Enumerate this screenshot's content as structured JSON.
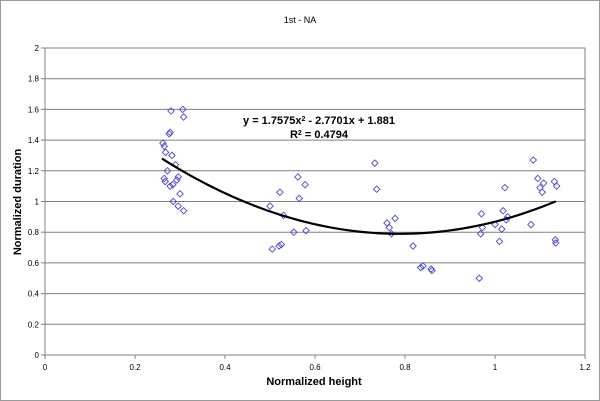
{
  "chart_data": {
    "type": "scatter",
    "title": "1st - NA",
    "xlabel": "Normalized height",
    "ylabel": "Normalized duration",
    "xlim": [
      0,
      1.2
    ],
    "ylim": [
      0,
      2
    ],
    "x_ticks": [
      "0",
      "0.2",
      "0.4",
      "0.6",
      "0.8",
      "1",
      "1.2"
    ],
    "y_ticks": [
      "0",
      "0.2",
      "0.4",
      "0.6",
      "0.8",
      "1",
      "1.2",
      "1.4",
      "1.6",
      "1.8",
      "2"
    ],
    "grid": "horizontal",
    "marker": "diamond",
    "marker_color": "#4a4acc",
    "trendline_color": "#000000",
    "trendline": {
      "type": "polynomial",
      "coefficients": [
        1.7575,
        -2.7701,
        1.881
      ],
      "x_range": [
        0.26,
        1.135
      ],
      "equation_prefix": "y = 1.7575x",
      "equation_sup": "2",
      "equation_suffix": " - 2.7701x + 1.881",
      "r2_prefix": "R",
      "r2_sup": "2",
      "r2_suffix": " = 0.4794"
    },
    "points": [
      [
        0.262,
        1.38
      ],
      [
        0.265,
        1.36
      ],
      [
        0.268,
        1.32
      ],
      [
        0.265,
        1.15
      ],
      [
        0.267,
        1.13
      ],
      [
        0.272,
        1.2
      ],
      [
        0.276,
        1.44
      ],
      [
        0.278,
        1.45
      ],
      [
        0.28,
        1.59
      ],
      [
        0.282,
        1.3
      ],
      [
        0.278,
        1.1
      ],
      [
        0.284,
        1.11
      ],
      [
        0.29,
        1.24
      ],
      [
        0.293,
        1.14
      ],
      [
        0.296,
        1.16
      ],
      [
        0.285,
        1.0
      ],
      [
        0.3,
        1.05
      ],
      [
        0.296,
        0.97
      ],
      [
        0.306,
        1.6
      ],
      [
        0.308,
        1.55
      ],
      [
        0.308,
        0.94
      ],
      [
        0.5,
        0.97
      ],
      [
        0.505,
        0.69
      ],
      [
        0.52,
        0.71
      ],
      [
        0.525,
        0.72
      ],
      [
        0.522,
        1.06
      ],
      [
        0.53,
        0.91
      ],
      [
        0.553,
        0.8
      ],
      [
        0.562,
        1.16
      ],
      [
        0.565,
        1.02
      ],
      [
        0.578,
        1.11
      ],
      [
        0.58,
        0.81
      ],
      [
        0.733,
        1.25
      ],
      [
        0.737,
        1.08
      ],
      [
        0.76,
        0.86
      ],
      [
        0.765,
        0.83
      ],
      [
        0.77,
        0.79
      ],
      [
        0.778,
        0.89
      ],
      [
        0.818,
        0.71
      ],
      [
        0.835,
        0.57
      ],
      [
        0.84,
        0.58
      ],
      [
        0.858,
        0.56
      ],
      [
        0.86,
        0.55
      ],
      [
        0.965,
        0.5
      ],
      [
        0.968,
        0.79
      ],
      [
        0.97,
        0.92
      ],
      [
        0.972,
        0.83
      ],
      [
        1.0,
        0.85
      ],
      [
        1.01,
        0.74
      ],
      [
        1.015,
        0.82
      ],
      [
        1.018,
        0.94
      ],
      [
        1.022,
        1.09
      ],
      [
        1.025,
        0.88
      ],
      [
        1.028,
        0.9
      ],
      [
        1.08,
        0.85
      ],
      [
        1.085,
        1.27
      ],
      [
        1.095,
        1.15
      ],
      [
        1.1,
        1.09
      ],
      [
        1.105,
        1.06
      ],
      [
        1.108,
        1.12
      ],
      [
        1.132,
        1.13
      ],
      [
        1.134,
        0.75
      ],
      [
        1.135,
        0.73
      ],
      [
        1.137,
        1.1
      ]
    ]
  }
}
